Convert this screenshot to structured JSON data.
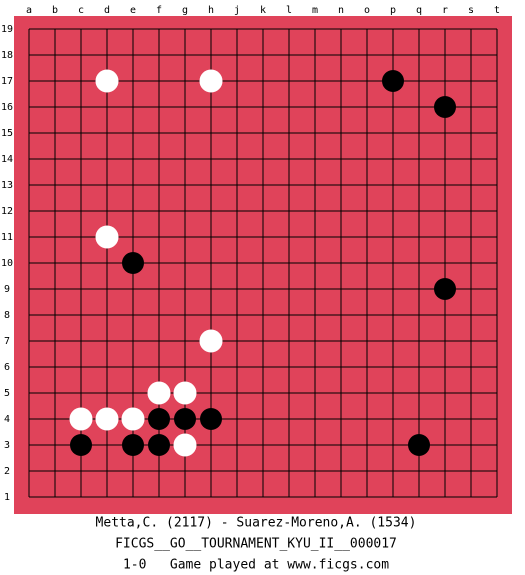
{
  "board": {
    "columns": [
      "a",
      "b",
      "c",
      "d",
      "e",
      "f",
      "g",
      "h",
      "j",
      "k",
      "l",
      "m",
      "n",
      "o",
      "p",
      "q",
      "r",
      "s",
      "t"
    ],
    "rows": [
      "19",
      "18",
      "17",
      "16",
      "15",
      "14",
      "13",
      "12",
      "11",
      "10",
      "9",
      "8",
      "7",
      "6",
      "5",
      "4",
      "3",
      "2",
      "1"
    ]
  },
  "footer": {
    "players": "Metta,C. (2117) - Suarez-Moreno,A. (1534)",
    "tournament": "FICGS__GO__TOURNAMENT_KYU_II__000017",
    "result": "1-0   Game played at www.ficgs.com"
  }
}
